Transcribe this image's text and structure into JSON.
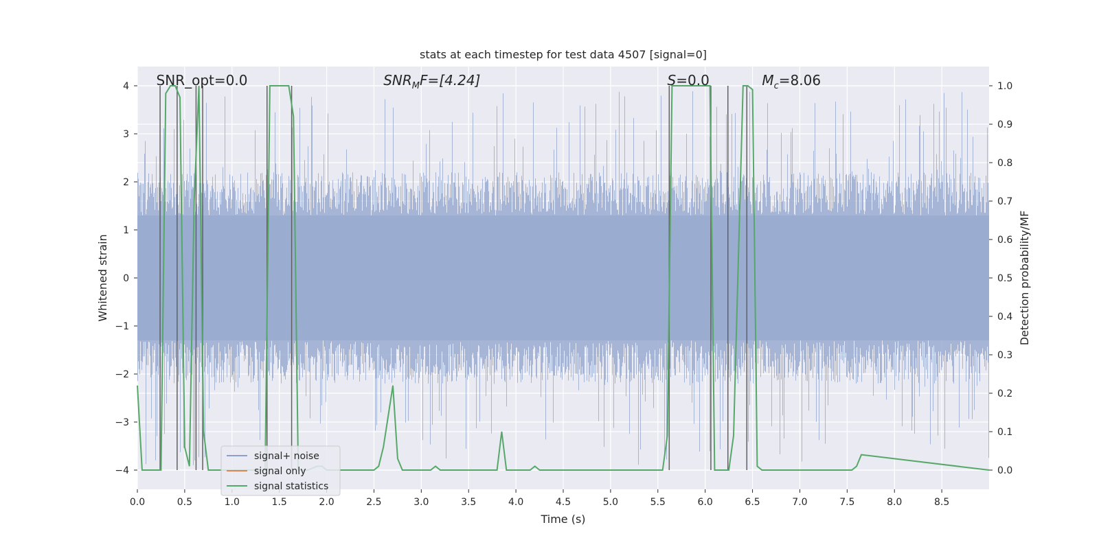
{
  "chart_data": {
    "type": "line",
    "title": "stats at each timestep for test data 4507 [signal=0]",
    "xlabel": "Time (s)",
    "ylabel_left": "Whitened strain",
    "ylabel_right": "Detection probability/MF",
    "xlim": [
      0.0,
      9.0
    ],
    "ylim_left": [
      -4.4,
      4.4
    ],
    "ylim_right": [
      -0.05,
      1.05
    ],
    "x_ticks": [
      0.0,
      0.5,
      1.0,
      1.5,
      2.0,
      2.5,
      3.0,
      3.5,
      4.0,
      4.5,
      5.0,
      5.5,
      6.0,
      6.5,
      7.0,
      7.5,
      8.0,
      8.5
    ],
    "x_tick_labels": [
      "0.0",
      "0.5",
      "1.0",
      "1.5",
      "2.0",
      "2.5",
      "3.0",
      "3.5",
      "4.0",
      "4.5",
      "5.0",
      "5.5",
      "6.0",
      "6.5",
      "7.0",
      "7.5",
      "8.0",
      "8.5"
    ],
    "y_left_ticks": [
      4,
      3,
      2,
      1,
      0,
      -1,
      -2,
      -3,
      -4
    ],
    "y_left_tick_labels": [
      "4",
      "3",
      "2",
      "1",
      "0",
      "−1",
      "−2",
      "−3",
      "−4"
    ],
    "y_right_ticks": [
      1.0,
      0.9,
      0.8,
      0.7,
      0.6,
      0.5,
      0.4,
      0.3,
      0.2,
      0.1,
      0.0
    ],
    "y_right_tick_labels": [
      "1.0",
      "0.9",
      "0.8",
      "0.7",
      "0.6",
      "0.5",
      "0.4",
      "0.3",
      "0.2",
      "0.1",
      "0.0"
    ],
    "grid": true,
    "annotations": {
      "snr_opt": "SNR_opt=0.0",
      "snr_mf_main": "SNR",
      "snr_mf_sub": "M",
      "snr_mf_rest": "F=[4.24]",
      "s_main": "S",
      "s_rest": "=0.0",
      "mc_main": "M",
      "mc_sub": "c",
      "mc_rest": "=8.06"
    },
    "legend": {
      "placement": "lower-left",
      "entries": [
        {
          "label": "signal+ noise",
          "color": "#8c9fcc"
        },
        {
          "label": "signal only",
          "color": "#dd8452"
        },
        {
          "label": "signal statistics",
          "color": "#55a868"
        }
      ]
    },
    "noise_series": {
      "name": "signal+ noise",
      "color": "#9aacd0",
      "description": "whitened strain noise, roughly ±2 with spikes to about ±3.9",
      "typical_amplitude": 1.75,
      "max_amplitude": 3.9
    },
    "signal_statistics": {
      "name": "signal statistics",
      "color": "#55a868",
      "x": [
        0.0,
        0.05,
        0.25,
        0.3,
        0.35,
        0.4,
        0.45,
        0.5,
        0.55,
        0.6,
        0.65,
        0.7,
        0.75,
        0.8,
        0.85,
        1.2,
        1.35,
        1.4,
        1.45,
        1.5,
        1.55,
        1.6,
        1.65,
        1.7,
        1.8,
        1.9,
        1.95,
        2.0,
        2.05,
        2.4,
        2.5,
        2.55,
        2.6,
        2.7,
        2.75,
        2.8,
        2.9,
        3.1,
        3.15,
        3.2,
        3.7,
        3.8,
        3.85,
        3.9,
        4.15,
        4.2,
        4.25,
        5.55,
        5.6,
        5.65,
        5.7,
        5.95,
        6.05,
        6.1,
        6.15,
        6.2,
        6.25,
        6.3,
        6.4,
        6.45,
        6.5,
        6.55,
        6.6,
        7.5,
        7.55,
        7.6,
        7.65,
        9.0
      ],
      "y": [
        0.22,
        0.0,
        0.0,
        0.98,
        1.0,
        1.0,
        0.97,
        0.06,
        0.01,
        0.7,
        1.0,
        0.1,
        0.0,
        0.0,
        0.0,
        0.0,
        0.0,
        1.0,
        1.0,
        1.0,
        1.0,
        1.0,
        0.92,
        0.0,
        0.0,
        0.01,
        0.01,
        0.0,
        0.0,
        0.0,
        0.0,
        0.01,
        0.06,
        0.22,
        0.03,
        0.0,
        0.0,
        0.0,
        0.01,
        0.0,
        0.0,
        0.0,
        0.1,
        0.0,
        0.0,
        0.01,
        0.0,
        0.0,
        0.09,
        1.0,
        1.0,
        1.0,
        1.0,
        0.0,
        0.0,
        0.0,
        0.0,
        0.09,
        1.0,
        1.0,
        0.99,
        0.01,
        0.0,
        0.0,
        0.0,
        0.01,
        0.04,
        0.0
      ],
      "y_axis": "right"
    },
    "detection_markers": {
      "color": "#606060",
      "x": [
        0.24,
        0.42,
        0.62,
        0.69,
        1.37,
        1.63,
        5.62,
        6.06,
        6.24,
        6.44
      ],
      "y_range": [
        -4.0,
        4.0
      ]
    }
  }
}
